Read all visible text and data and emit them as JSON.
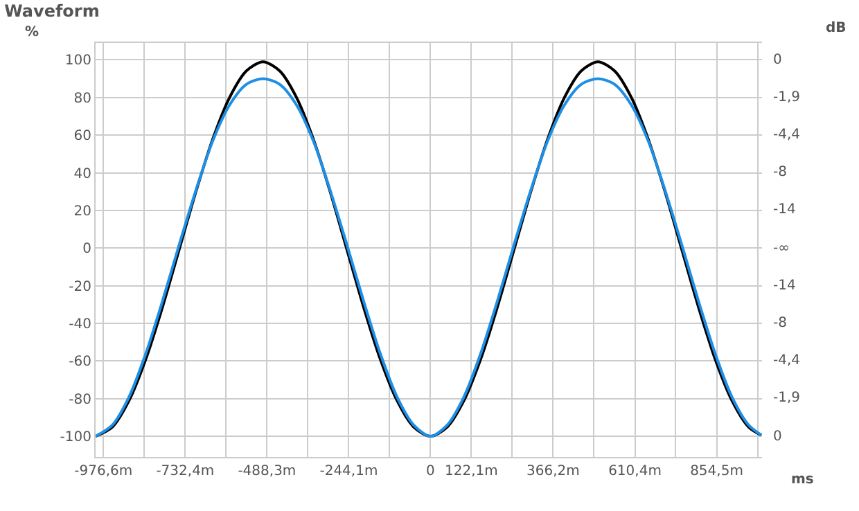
{
  "chart_data": {
    "type": "line",
    "title": "Waveform",
    "xlabel": "ms",
    "ylabel": "%",
    "y2label": "dB",
    "x": [
      -1000,
      -950,
      -900,
      -850,
      -800,
      -750,
      -700,
      -650,
      -600,
      -550,
      -500,
      -450,
      -400,
      -350,
      -300,
      -250,
      -200,
      -150,
      -100,
      -50,
      0,
      50,
      100,
      150,
      200,
      250,
      300,
      350,
      400,
      450,
      500,
      550,
      600,
      650,
      700,
      750,
      800,
      850,
      900,
      950,
      988
    ],
    "series": [
      {
        "color": "#000000",
        "values": [
          -100,
          -95.1,
          -81,
          -59,
          -31.2,
          -0.5,
          30.2,
          58,
          80,
          94.1,
          99,
          94.1,
          80,
          58,
          30.2,
          -0.5,
          -31.2,
          -59,
          -81,
          -95.1,
          -100,
          -95.1,
          -81,
          -59,
          -31.2,
          -0.5,
          30.2,
          58,
          80,
          94.1,
          99,
          94.1,
          80,
          58,
          30.2,
          -0.5,
          -31.2,
          -59,
          -81,
          -95.1,
          -99.4
        ]
      },
      {
        "color": "#1e8fe6",
        "values": [
          -100,
          -94,
          -79,
          -56,
          -28,
          2,
          31,
          57,
          76,
          87,
          90,
          87,
          76,
          57,
          31,
          2,
          -28,
          -56,
          -79,
          -94,
          -100,
          -94,
          -79,
          -56,
          -28,
          2,
          31,
          57,
          76,
          87,
          90,
          87,
          76,
          57,
          31,
          2,
          -28,
          -56,
          -79,
          -94,
          -99.4
        ]
      }
    ],
    "xlim": [
      -1000,
      990
    ],
    "ylim": [
      -111,
      109
    ],
    "xticks": [
      {
        "value": -976.6,
        "label": "-976,6m"
      },
      {
        "value": -854.5,
        "label": null
      },
      {
        "value": -732.4,
        "label": "-732,4m"
      },
      {
        "value": -610.4,
        "label": null
      },
      {
        "value": -488.3,
        "label": "-488,3m"
      },
      {
        "value": -366.2,
        "label": null
      },
      {
        "value": -244.1,
        "label": "-244,1m"
      },
      {
        "value": -122.1,
        "label": null
      },
      0,
      {
        "value": 122.1,
        "label": "122,1m"
      },
      {
        "value": 244.1,
        "label": null
      },
      {
        "value": 366.2,
        "label": "366,2m"
      },
      {
        "value": 488.3,
        "label": null
      },
      {
        "value": 610.4,
        "label": "610,4m"
      },
      {
        "value": 732.4,
        "label": null
      },
      {
        "value": 854.5,
        "label": "854,5m"
      },
      {
        "value": 976.6,
        "label": null
      }
    ],
    "yticks": [
      -100,
      -80,
      -60,
      -40,
      -20,
      0,
      20,
      40,
      60,
      80,
      100
    ],
    "annotations": [
      "0",
      "-1,9",
      "-4,4",
      "-8",
      "-14",
      "-∞",
      "-14",
      "-8",
      "-4,4",
      "-1,9",
      "0"
    ],
    "grid": true,
    "marker": "none",
    "line_style": "solid"
  }
}
